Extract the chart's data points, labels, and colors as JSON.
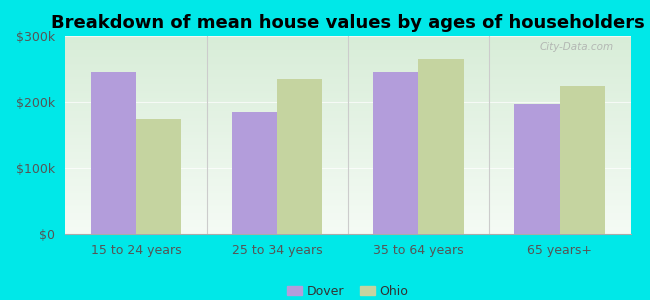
{
  "title": "Breakdown of mean house values by ages of householders",
  "categories": [
    "15 to 24 years",
    "25 to 34 years",
    "35 to 64 years",
    "65 years+"
  ],
  "dover_values": [
    245000,
    185000,
    245000,
    197000
  ],
  "ohio_values": [
    175000,
    235000,
    265000,
    225000
  ],
  "dover_color": "#b39ddb",
  "ohio_color": "#c5d4a0",
  "background_color": "#00e8e8",
  "title_fontsize": 13,
  "ylim": [
    0,
    300000
  ],
  "yticks": [
    0,
    100000,
    200000,
    300000
  ],
  "ytick_labels": [
    "$0",
    "$100k",
    "$200k",
    "$300k"
  ],
  "legend_labels": [
    "Dover",
    "Ohio"
  ],
  "bar_width": 0.32,
  "watermark": "City-Data.com",
  "grad_top_color": "#d8edd8",
  "grad_bottom_color": "#f5fbf5"
}
